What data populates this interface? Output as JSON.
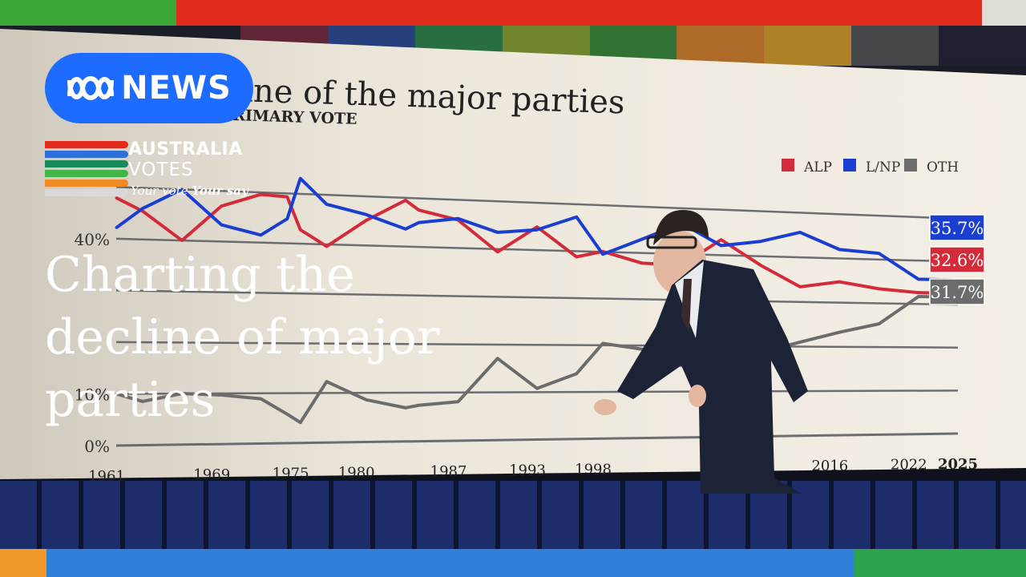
{
  "colors": {
    "alp": "#d42b3a",
    "lnp": "#1a3fd0",
    "oth": "#6c6c6c",
    "abc_blue": "#1d6cff",
    "top_bar": [
      "#3aa635",
      "#e02a1b",
      "#e02a1b",
      "#dedcd5"
    ],
    "bottom_bar": [
      "#f09a2e",
      "#2f80d8",
      "#2ea24b"
    ],
    "votes_stripes": [
      "#e02a1b",
      "#2f6fd8",
      "#1a8a5c",
      "#43b649",
      "#f08a24",
      "#d9d9d9"
    ]
  },
  "brand": {
    "network": "NEWS",
    "logo_icon": "abc-lissajous-icon",
    "votes_line1": "AUSTRALIA",
    "votes_line2": "VOTES",
    "tagline_a": "Your vote",
    "tagline_b": "Your say"
  },
  "headline": {
    "line1": "Charting the",
    "line2": "decline of major",
    "line3": "parties"
  },
  "chart_data": {
    "type": "line",
    "title": "line of the major parties",
    "subtitle": "RIMARY VOTE",
    "x_tick_labels": [
      "1961",
      "1969",
      "1975",
      "1980",
      "1987",
      "1993",
      "1998",
      "2016",
      "2022",
      "2025"
    ],
    "y_tick_labels": [
      "0%",
      "10%",
      "40%"
    ],
    "xlim": [
      1961,
      2025
    ],
    "ylim": [
      0,
      55
    ],
    "grid": true,
    "legend_position": "top-right",
    "x": [
      1961,
      1963,
      1966,
      1969,
      1972,
      1974,
      1975,
      1977,
      1980,
      1983,
      1984,
      1987,
      1990,
      1993,
      1996,
      1998,
      2001,
      2004,
      2007,
      2010,
      2013,
      2016,
      2019,
      2022,
      2025
    ],
    "series": [
      {
        "name": "ALP",
        "values": [
          47.9,
          45.5,
          40.0,
          47.0,
          49.6,
          49.3,
          42.8,
          39.6,
          45.1,
          49.5,
          47.6,
          45.8,
          39.4,
          44.9,
          38.8,
          40.1,
          37.8,
          37.6,
          43.4,
          38.0,
          33.4,
          34.7,
          33.3,
          32.6,
          32.6
        ]
      },
      {
        "name": "L/NP",
        "values": [
          42.1,
          46.0,
          50.0,
          43.3,
          41.5,
          44.9,
          53.1,
          48.1,
          46.3,
          43.6,
          45.0,
          46.1,
          43.5,
          44.3,
          47.3,
          39.5,
          43.0,
          46.7,
          42.1,
          43.3,
          45.6,
          42.0,
          41.4,
          35.7,
          35.7
        ]
      },
      {
        "name": "OTH",
        "values": [
          10.0,
          8.5,
          10.0,
          9.7,
          8.9,
          5.8,
          4.1,
          12.3,
          8.6,
          6.9,
          7.4,
          8.1,
          17.1,
          10.8,
          13.9,
          20.4,
          19.2,
          15.7,
          14.5,
          18.7,
          21.0,
          23.3,
          25.3,
          31.7,
          31.7
        ]
      }
    ],
    "end_labels": [
      {
        "name": "L/NP",
        "text": "35.7%"
      },
      {
        "name": "ALP",
        "text": "32.6%"
      },
      {
        "name": "OTH",
        "text": "31.7%"
      }
    ]
  }
}
